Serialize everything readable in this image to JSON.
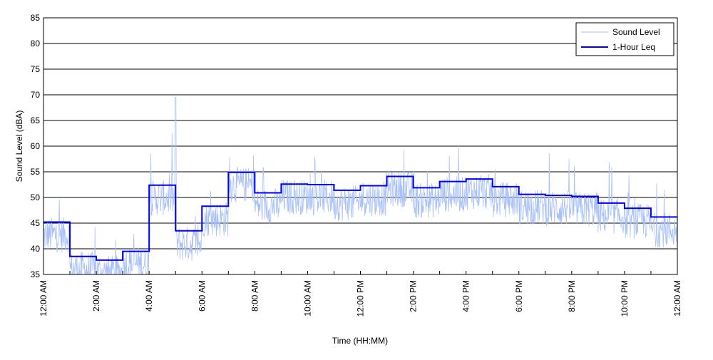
{
  "chart_data": {
    "type": "line",
    "title": "",
    "xlabel": "Time (HH:MM)",
    "ylabel": "Sound Level (dBA)",
    "ylim": [
      35,
      85
    ],
    "xlim_hours": [
      0,
      24
    ],
    "yticks": [
      35,
      40,
      45,
      50,
      55,
      60,
      65,
      70,
      75,
      80,
      85
    ],
    "xtick_labels": [
      "12:00 AM",
      "2:00 AM",
      "4:00 AM",
      "6:00 AM",
      "8:00 AM",
      "10:00 AM",
      "12:00 PM",
      "2:00 PM",
      "4:00 PM",
      "6:00 PM",
      "8:00 PM",
      "10:00 PM",
      "12:00 AM"
    ],
    "grid": "horizontal",
    "legend_position": "top-right",
    "series": [
      {
        "name": "Sound Level",
        "color": "#a9c1f7",
        "description_values": "noisy fluctuating trace around the hourly Leq, peak ~69.5 near 5:00 AM"
      },
      {
        "name": "1-Hour Leq",
        "color": "#0000ff",
        "step_start_hours": [
          0,
          1,
          2,
          3,
          4,
          5,
          6,
          7,
          8,
          9,
          10,
          11,
          12,
          13,
          14,
          15,
          16,
          17,
          18,
          19,
          20,
          21,
          22,
          23
        ],
        "values": [
          45.2,
          38.5,
          37.8,
          39.5,
          52.4,
          43.5,
          48.3,
          54.9,
          50.9,
          52.6,
          52.5,
          51.4,
          52.3,
          54.1,
          51.9,
          53.1,
          53.6,
          52.1,
          50.6,
          50.4,
          50.2,
          48.9,
          47.9,
          46.2
        ]
      }
    ]
  }
}
